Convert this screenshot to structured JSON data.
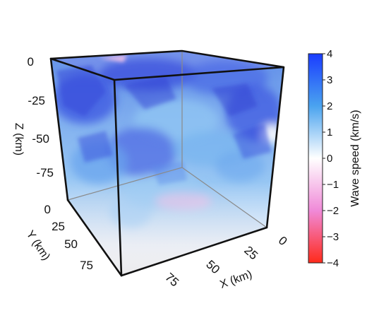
{
  "figure": {
    "z_axis": {
      "title": "Z (km)",
      "ticks": [
        "0",
        "-25",
        "-50",
        "-75"
      ]
    },
    "y_axis": {
      "title": "Y (km)",
      "ticks": [
        "0",
        "25",
        "50",
        "75"
      ]
    },
    "x_axis": {
      "title": "X (km)",
      "ticks": [
        "0",
        "25",
        "50",
        "75"
      ]
    },
    "colorbar": {
      "title": "Wave speed  (km/s)",
      "ticks": [
        "4",
        "3",
        "2",
        "1",
        "0",
        "−1",
        "−2",
        "−3",
        "−4"
      ],
      "range": [
        -4,
        4
      ],
      "colors": {
        "max": "#1a3cff",
        "high": "#4aa3ef",
        "mid": "#ffffff",
        "low": "#f08ad8",
        "min": "#ff2a1a"
      }
    },
    "volume_colors": {
      "deep_blue": "#3a4fe0",
      "light_blue": "#6fb2ef",
      "pale": "#eef3fb",
      "pink": "#f3c6ea"
    }
  }
}
